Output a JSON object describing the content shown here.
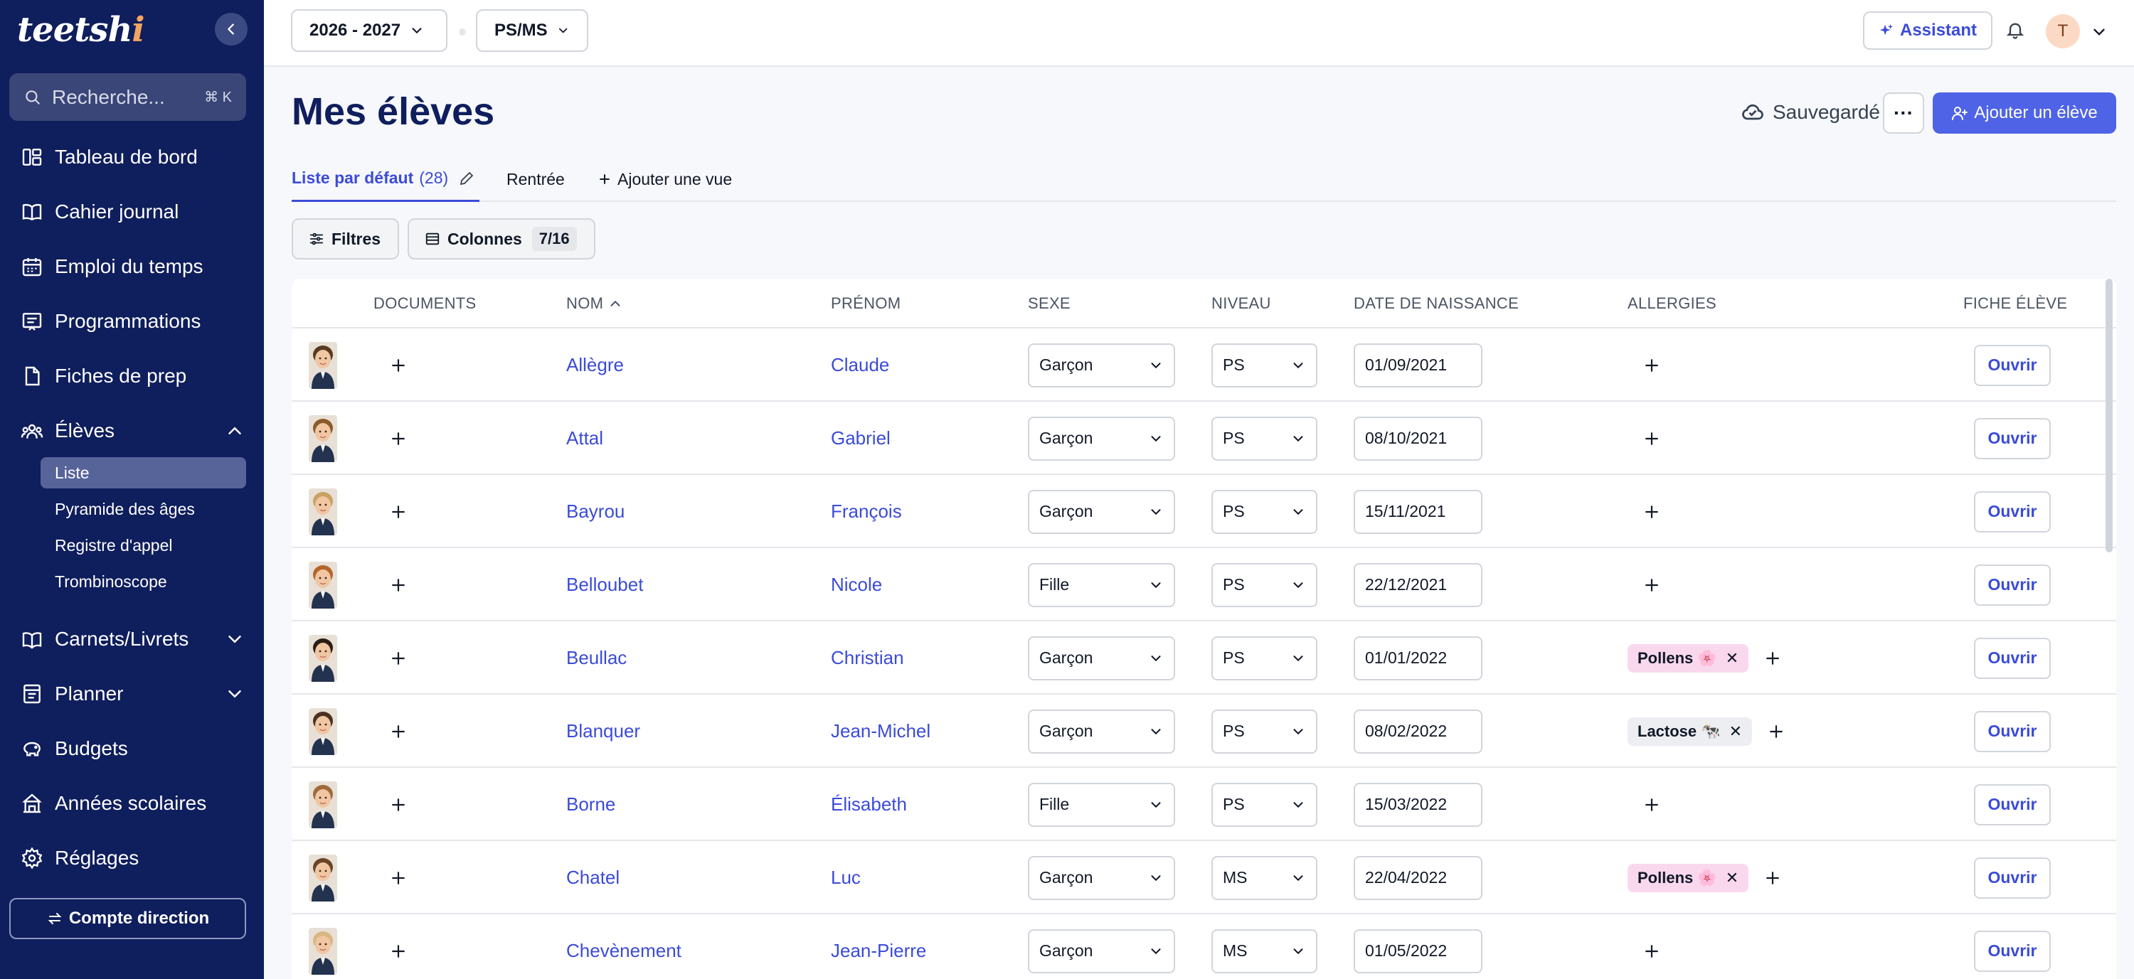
{
  "sidebar": {
    "logo": "teetsh",
    "search": {
      "placeholder": "Recherche...",
      "shortcut": "⌘ K"
    },
    "items": [
      {
        "label": "Tableau de bord",
        "icon": "dashboard-icon"
      },
      {
        "label": "Cahier journal",
        "icon": "book-icon"
      },
      {
        "label": "Emploi du temps",
        "icon": "calendar-icon"
      },
      {
        "label": "Programmations",
        "icon": "presentation-icon"
      },
      {
        "label": "Fiches de prep",
        "icon": "file-icon"
      },
      {
        "label": "Élèves",
        "icon": "users-icon",
        "expanded": true
      },
      {
        "label": "Carnets/Livrets",
        "icon": "notebook-icon"
      },
      {
        "label": "Planner",
        "icon": "planner-icon"
      },
      {
        "label": "Budgets",
        "icon": "piggy-bank-icon"
      },
      {
        "label": "Années scolaires",
        "icon": "school-icon"
      },
      {
        "label": "Réglages",
        "icon": "gear-icon"
      }
    ],
    "sub_items": [
      {
        "label": "Liste",
        "active": true
      },
      {
        "label": "Pyramide des âges"
      },
      {
        "label": "Registre d'appel"
      },
      {
        "label": "Trombinoscope"
      }
    ],
    "account_button": "Compte direction"
  },
  "topbar": {
    "year_select": "2026 - 2027",
    "class_select": "PS/MS",
    "assistant_label": "Assistant",
    "avatar_initial": "T"
  },
  "header": {
    "title": "Mes élèves",
    "saved_label": "Sauvegardé",
    "more_label": "···",
    "add_button": "Ajouter un élève"
  },
  "tabs": {
    "default_view": "Liste par défaut",
    "default_count": "(28)",
    "second": "Rentrée",
    "add_view": "Ajouter une vue"
  },
  "toolbar": {
    "filters_label": "Filtres",
    "columns_label": "Colonnes",
    "columns_badge": "7/16"
  },
  "table": {
    "headers": {
      "documents": "DOCUMENTS",
      "nom": "NOM",
      "prenom": "PRÉNOM",
      "sexe": "SEXE",
      "niveau": "NIVEAU",
      "naissance": "DATE DE NAISSANCE",
      "allergies": "ALLERGIES",
      "fiche": "FICHE ÉLÈVE"
    },
    "open_label": "Ouvrir",
    "rows": [
      {
        "nom": "Allègre",
        "prenom": "Claude",
        "sexe": "Garçon",
        "niveau": "PS",
        "naissance": "01/09/2021",
        "allergies": []
      },
      {
        "nom": "Attal",
        "prenom": "Gabriel",
        "sexe": "Garçon",
        "niveau": "PS",
        "naissance": "08/10/2021",
        "allergies": []
      },
      {
        "nom": "Bayrou",
        "prenom": "François",
        "sexe": "Garçon",
        "niveau": "PS",
        "naissance": "15/11/2021",
        "allergies": []
      },
      {
        "nom": "Belloubet",
        "prenom": "Nicole",
        "sexe": "Fille",
        "niveau": "PS",
        "naissance": "22/12/2021",
        "allergies": []
      },
      {
        "nom": "Beullac",
        "prenom": "Christian",
        "sexe": "Garçon",
        "niveau": "PS",
        "naissance": "01/01/2022",
        "allergies": [
          {
            "label": "Pollens 🌸",
            "color": "#f9d8ee"
          }
        ]
      },
      {
        "nom": "Blanquer",
        "prenom": "Jean-Michel",
        "sexe": "Garçon",
        "niveau": "PS",
        "naissance": "08/02/2022",
        "allergies": [
          {
            "label": "Lactose 🐄",
            "color": "#eceef1"
          }
        ]
      },
      {
        "nom": "Borne",
        "prenom": "Élisabeth",
        "sexe": "Fille",
        "niveau": "PS",
        "naissance": "15/03/2022",
        "allergies": []
      },
      {
        "nom": "Chatel",
        "prenom": "Luc",
        "sexe": "Garçon",
        "niveau": "MS",
        "naissance": "22/04/2022",
        "allergies": [
          {
            "label": "Pollens 🌸",
            "color": "#f9d8ee"
          }
        ]
      },
      {
        "nom": "Chevènement",
        "prenom": "Jean-Pierre",
        "sexe": "Garçon",
        "niveau": "MS",
        "naissance": "01/05/2022",
        "allergies": []
      }
    ]
  }
}
